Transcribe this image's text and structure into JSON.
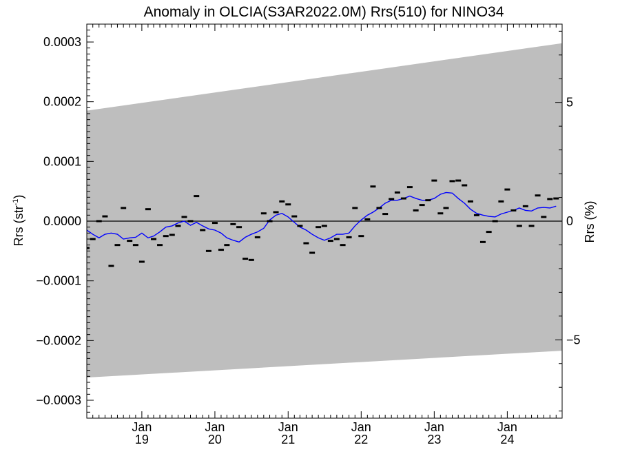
{
  "chart_data": {
    "type": "line",
    "title": "Anomaly in OLCIA(S3AR2022.0M) Rrs(510) for NINO34",
    "ylabel_left": {
      "base": "Rrs (str",
      "sup": "-1",
      "close": ")"
    },
    "ylabel_right": "Rrs (%)",
    "x_range": [
      "2018-04-01",
      "2024-10-01"
    ],
    "ylim_left": [
      -0.00033,
      0.00033
    ],
    "ylim_right": [
      -8.3,
      8.3
    ],
    "left_ticks": [
      {
        "value": 0.0003,
        "label": "0.0003"
      },
      {
        "value": 0.0002,
        "label": "0.0002"
      },
      {
        "value": 0.0001,
        "label": "0.0001"
      },
      {
        "value": 0.0,
        "label": "0.0000"
      },
      {
        "value": -0.0001,
        "label": "−0.0001"
      },
      {
        "value": -0.0002,
        "label": "−0.0002"
      },
      {
        "value": -0.0003,
        "label": "−0.0003"
      }
    ],
    "right_ticks": [
      {
        "value": 5,
        "label": "5"
      },
      {
        "value": 0,
        "label": "0"
      },
      {
        "value": -5,
        "label": "−5"
      }
    ],
    "x_ticks": [
      {
        "date": "2019-01-01",
        "month": "Jan",
        "year": "19"
      },
      {
        "date": "2020-01-01",
        "month": "Jan",
        "year": "20"
      },
      {
        "date": "2021-01-01",
        "month": "Jan",
        "year": "21"
      },
      {
        "date": "2022-01-01",
        "month": "Jan",
        "year": "22"
      },
      {
        "date": "2023-01-01",
        "month": "Jan",
        "year": "23"
      },
      {
        "date": "2024-01-01",
        "month": "Jan",
        "year": "24"
      }
    ],
    "uncertainty_band": {
      "start": {
        "date": "2018-04-01",
        "upper": 0.000185,
        "lower": -0.000262
      },
      "end": {
        "date": "2024-10-01",
        "upper": 0.000298,
        "lower": -0.000217
      },
      "color": "#bebebe"
    },
    "zero_line": true,
    "monthly_anomalies": {
      "color": "#000000",
      "points": [
        {
          "date": "2018-04-01",
          "value": -4.5e-05
        },
        {
          "date": "2018-05-01",
          "value": -3e-05
        },
        {
          "date": "2018-06-01",
          "value": 0.0
        },
        {
          "date": "2018-07-01",
          "value": 8e-06
        },
        {
          "date": "2018-08-01",
          "value": -7.5e-05
        },
        {
          "date": "2018-09-01",
          "value": -4e-05
        },
        {
          "date": "2018-10-01",
          "value": 2.2e-05
        },
        {
          "date": "2018-11-01",
          "value": -3.3e-05
        },
        {
          "date": "2018-12-01",
          "value": -4e-05
        },
        {
          "date": "2019-01-01",
          "value": -6.8e-05
        },
        {
          "date": "2019-02-01",
          "value": 2e-05
        },
        {
          "date": "2019-03-01",
          "value": -3e-05
        },
        {
          "date": "2019-04-01",
          "value": -4e-05
        },
        {
          "date": "2019-05-01",
          "value": -2.5e-05
        },
        {
          "date": "2019-06-01",
          "value": -2.3e-05
        },
        {
          "date": "2019-07-01",
          "value": -8e-06
        },
        {
          "date": "2019-08-01",
          "value": 7e-06
        },
        {
          "date": "2019-09-01",
          "value": 0.0
        },
        {
          "date": "2019-10-01",
          "value": 4.2e-05
        },
        {
          "date": "2019-11-01",
          "value": -1.5e-05
        },
        {
          "date": "2019-12-01",
          "value": -5e-05
        },
        {
          "date": "2020-01-01",
          "value": -3e-06
        },
        {
          "date": "2020-02-01",
          "value": -4.8e-05
        },
        {
          "date": "2020-03-01",
          "value": -4e-05
        },
        {
          "date": "2020-04-01",
          "value": -5e-06
        },
        {
          "date": "2020-05-01",
          "value": -1e-05
        },
        {
          "date": "2020-06-01",
          "value": -6.3e-05
        },
        {
          "date": "2020-07-01",
          "value": -6.5e-05
        },
        {
          "date": "2020-08-01",
          "value": -2.7e-05
        },
        {
          "date": "2020-09-01",
          "value": 1.3e-05
        },
        {
          "date": "2020-10-01",
          "value": 0.0
        },
        {
          "date": "2020-11-01",
          "value": 1.5e-05
        },
        {
          "date": "2020-12-01",
          "value": 3.3e-05
        },
        {
          "date": "2021-01-01",
          "value": 2.8e-05
        },
        {
          "date": "2021-02-01",
          "value": 8e-06
        },
        {
          "date": "2021-03-01",
          "value": -8e-06
        },
        {
          "date": "2021-04-01",
          "value": -3.7e-05
        },
        {
          "date": "2021-05-01",
          "value": -5.3e-05
        },
        {
          "date": "2021-06-01",
          "value": -1e-05
        },
        {
          "date": "2021-07-01",
          "value": -8e-06
        },
        {
          "date": "2021-08-01",
          "value": -3.3e-05
        },
        {
          "date": "2021-09-01",
          "value": -3e-05
        },
        {
          "date": "2021-10-01",
          "value": -4e-05
        },
        {
          "date": "2021-11-01",
          "value": -2.7e-05
        },
        {
          "date": "2021-12-01",
          "value": 2.2e-05
        },
        {
          "date": "2022-01-01",
          "value": -2.5e-05
        },
        {
          "date": "2022-02-01",
          "value": 3e-06
        },
        {
          "date": "2022-03-01",
          "value": 5.8e-05
        },
        {
          "date": "2022-04-01",
          "value": 2.2e-05
        },
        {
          "date": "2022-05-01",
          "value": 1.2e-05
        },
        {
          "date": "2022-06-01",
          "value": 3.7e-05
        },
        {
          "date": "2022-07-01",
          "value": 4.8e-05
        },
        {
          "date": "2022-08-01",
          "value": 3.8e-05
        },
        {
          "date": "2022-09-01",
          "value": 5.7e-05
        },
        {
          "date": "2022-10-01",
          "value": 1.8e-05
        },
        {
          "date": "2022-11-01",
          "value": 2.7e-05
        },
        {
          "date": "2022-12-01",
          "value": 3.5e-05
        },
        {
          "date": "2023-01-01",
          "value": 6.8e-05
        },
        {
          "date": "2023-02-01",
          "value": 1.3e-05
        },
        {
          "date": "2023-03-01",
          "value": 2.2e-05
        },
        {
          "date": "2023-04-01",
          "value": 6.7e-05
        },
        {
          "date": "2023-05-01",
          "value": 6.8e-05
        },
        {
          "date": "2023-06-01",
          "value": 6e-05
        },
        {
          "date": "2023-07-01",
          "value": 3.3e-05
        },
        {
          "date": "2023-08-01",
          "value": 1e-05
        },
        {
          "date": "2023-09-01",
          "value": -3.5e-05
        },
        {
          "date": "2023-10-01",
          "value": -1.8e-05
        },
        {
          "date": "2023-11-01",
          "value": 0.0
        },
        {
          "date": "2023-12-01",
          "value": 3.3e-05
        },
        {
          "date": "2024-01-01",
          "value": 5.3e-05
        },
        {
          "date": "2024-02-01",
          "value": 1.8e-05
        },
        {
          "date": "2024-03-01",
          "value": -8e-06
        },
        {
          "date": "2024-04-01",
          "value": 2.5e-05
        },
        {
          "date": "2024-05-01",
          "value": -8e-06
        },
        {
          "date": "2024-06-01",
          "value": 4.3e-05
        },
        {
          "date": "2024-07-01",
          "value": 7e-06
        },
        {
          "date": "2024-08-01",
          "value": 3.7e-05
        },
        {
          "date": "2024-09-01",
          "value": 3.8e-05
        }
      ]
    },
    "running_mean": {
      "color": "#0000ff",
      "points": [
        {
          "date": "2018-04-01",
          "value": -1.5e-05
        },
        {
          "date": "2018-05-01",
          "value": -2.2e-05
        },
        {
          "date": "2018-06-01",
          "value": -2.8e-05
        },
        {
          "date": "2018-07-01",
          "value": -2.2e-05
        },
        {
          "date": "2018-08-01",
          "value": -2e-05
        },
        {
          "date": "2018-09-01",
          "value": -2.2e-05
        },
        {
          "date": "2018-10-01",
          "value": -3e-05
        },
        {
          "date": "2018-11-01",
          "value": -2.8e-05
        },
        {
          "date": "2018-12-01",
          "value": -2.7e-05
        },
        {
          "date": "2019-01-01",
          "value": -2e-05
        },
        {
          "date": "2019-02-01",
          "value": -2.8e-05
        },
        {
          "date": "2019-03-01",
          "value": -2.5e-05
        },
        {
          "date": "2019-04-01",
          "value": -1.8e-05
        },
        {
          "date": "2019-05-01",
          "value": -1e-05
        },
        {
          "date": "2019-06-01",
          "value": -8e-06
        },
        {
          "date": "2019-07-01",
          "value": -3e-06
        },
        {
          "date": "2019-08-01",
          "value": 0.0
        },
        {
          "date": "2019-09-01",
          "value": -7e-06
        },
        {
          "date": "2019-10-01",
          "value": -2e-06
        },
        {
          "date": "2019-11-01",
          "value": -8e-06
        },
        {
          "date": "2019-12-01",
          "value": -1.3e-05
        },
        {
          "date": "2020-01-01",
          "value": -1.5e-05
        },
        {
          "date": "2020-02-01",
          "value": -2e-05
        },
        {
          "date": "2020-03-01",
          "value": -2.8e-05
        },
        {
          "date": "2020-04-01",
          "value": -3.2e-05
        },
        {
          "date": "2020-05-01",
          "value": -3.5e-05
        },
        {
          "date": "2020-06-01",
          "value": -2.7e-05
        },
        {
          "date": "2020-07-01",
          "value": -2.2e-05
        },
        {
          "date": "2020-08-01",
          "value": -1.8e-05
        },
        {
          "date": "2020-09-01",
          "value": -1.2e-05
        },
        {
          "date": "2020-10-01",
          "value": 2e-06
        },
        {
          "date": "2020-11-01",
          "value": 1e-05
        },
        {
          "date": "2020-12-01",
          "value": 1.3e-05
        },
        {
          "date": "2021-01-01",
          "value": 7e-06
        },
        {
          "date": "2021-02-01",
          "value": -2e-06
        },
        {
          "date": "2021-03-01",
          "value": -1e-05
        },
        {
          "date": "2021-04-01",
          "value": -1.5e-05
        },
        {
          "date": "2021-05-01",
          "value": -2.2e-05
        },
        {
          "date": "2021-06-01",
          "value": -2.8e-05
        },
        {
          "date": "2021-07-01",
          "value": -3.2e-05
        },
        {
          "date": "2021-08-01",
          "value": -2.8e-05
        },
        {
          "date": "2021-09-01",
          "value": -2.2e-05
        },
        {
          "date": "2021-10-01",
          "value": -2.2e-05
        },
        {
          "date": "2021-11-01",
          "value": -2e-05
        },
        {
          "date": "2021-12-01",
          "value": -8e-06
        },
        {
          "date": "2022-01-01",
          "value": 2e-06
        },
        {
          "date": "2022-02-01",
          "value": 1e-05
        },
        {
          "date": "2022-03-01",
          "value": 1.5e-05
        },
        {
          "date": "2022-04-01",
          "value": 2.2e-05
        },
        {
          "date": "2022-05-01",
          "value": 3e-05
        },
        {
          "date": "2022-06-01",
          "value": 3.5e-05
        },
        {
          "date": "2022-07-01",
          "value": 3.5e-05
        },
        {
          "date": "2022-08-01",
          "value": 3.8e-05
        },
        {
          "date": "2022-09-01",
          "value": 4.2e-05
        },
        {
          "date": "2022-10-01",
          "value": 3.8e-05
        },
        {
          "date": "2022-11-01",
          "value": 3.5e-05
        },
        {
          "date": "2022-12-01",
          "value": 3.5e-05
        },
        {
          "date": "2023-01-01",
          "value": 3.8e-05
        },
        {
          "date": "2023-02-01",
          "value": 4.5e-05
        },
        {
          "date": "2023-03-01",
          "value": 4.8e-05
        },
        {
          "date": "2023-04-01",
          "value": 4.7e-05
        },
        {
          "date": "2023-05-01",
          "value": 3.8e-05
        },
        {
          "date": "2023-06-01",
          "value": 3e-05
        },
        {
          "date": "2023-07-01",
          "value": 2e-05
        },
        {
          "date": "2023-08-01",
          "value": 1.3e-05
        },
        {
          "date": "2023-09-01",
          "value": 1e-05
        },
        {
          "date": "2023-10-01",
          "value": 8e-06
        },
        {
          "date": "2023-11-01",
          "value": 7e-06
        },
        {
          "date": "2023-12-01",
          "value": 1.2e-05
        },
        {
          "date": "2024-01-01",
          "value": 1.5e-05
        },
        {
          "date": "2024-02-01",
          "value": 1.8e-05
        },
        {
          "date": "2024-03-01",
          "value": 2.2e-05
        },
        {
          "date": "2024-04-01",
          "value": 1.8e-05
        },
        {
          "date": "2024-05-01",
          "value": 1.7e-05
        },
        {
          "date": "2024-06-01",
          "value": 2.2e-05
        },
        {
          "date": "2024-07-01",
          "value": 2.3e-05
        },
        {
          "date": "2024-08-01",
          "value": 2.2e-05
        },
        {
          "date": "2024-09-01",
          "value": 2.5e-05
        }
      ]
    }
  }
}
